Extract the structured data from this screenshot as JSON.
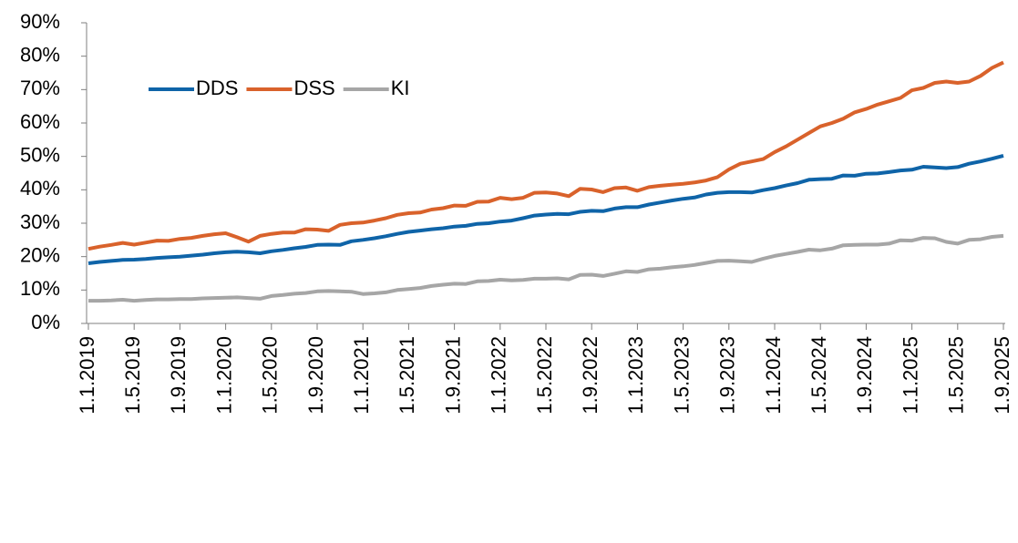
{
  "chart_data": {
    "type": "line",
    "categories": [
      "1.1.2019",
      null,
      null,
      null,
      "1.5.2019",
      null,
      null,
      null,
      "1.9.2019",
      null,
      null,
      null,
      "1.1.2020",
      null,
      null,
      null,
      "1.5.2020",
      null,
      null,
      null,
      "1.9.2020",
      null,
      null,
      null,
      "1.1.2021",
      null,
      null,
      null,
      "1.5.2021",
      null,
      null,
      null,
      "1.9.2021",
      null,
      null,
      null,
      "1.1.2022",
      null,
      null,
      null,
      "1.5.2022",
      null,
      null,
      null,
      "1.9.2022",
      null,
      null,
      null,
      "1.1.2023",
      null,
      null,
      null,
      "1.5.2023",
      null,
      null,
      null,
      "1.9.2023",
      null,
      null,
      null,
      "1.1.2024",
      null,
      null,
      null,
      "1.5.2024",
      null,
      null,
      null,
      "1.9.2024",
      null,
      null,
      null,
      "1.1.2025",
      null,
      null,
      null,
      "1.5.2025",
      null,
      null,
      null,
      "1.9.2025"
    ],
    "series": [
      {
        "name": "DDS",
        "color": "#0f64a8",
        "values": [
          18.0,
          18.4,
          18.7,
          19.0,
          19.1,
          19.3,
          19.6,
          19.8,
          20.0,
          20.3,
          20.6,
          21.0,
          21.3,
          21.5,
          21.3,
          21.0,
          21.6,
          22.0,
          22.5,
          22.9,
          23.5,
          23.6,
          23.5,
          24.6,
          25.0,
          25.5,
          26.1,
          26.8,
          27.4,
          27.8,
          28.2,
          28.5,
          29.0,
          29.2,
          29.8,
          30.0,
          30.5,
          30.8,
          31.5,
          32.3,
          32.6,
          32.8,
          32.7,
          33.4,
          33.7,
          33.6,
          34.4,
          34.8,
          34.8,
          35.6,
          36.2,
          36.8,
          37.3,
          37.7,
          38.6,
          39.1,
          39.3,
          39.3,
          39.2,
          39.9,
          40.5,
          41.3,
          42.0,
          43.0,
          43.2,
          43.3,
          44.3,
          44.2,
          44.8,
          44.9,
          45.3,
          45.8,
          46.0,
          46.9,
          46.7,
          46.5,
          46.8,
          47.8,
          48.5,
          49.3,
          50.2
        ]
      },
      {
        "name": "DSS",
        "color": "#d9622b",
        "values": [
          22.3,
          23.0,
          23.5,
          24.1,
          23.6,
          24.2,
          24.8,
          24.7,
          25.3,
          25.6,
          26.2,
          26.7,
          27.0,
          25.8,
          24.5,
          26.2,
          26.8,
          27.2,
          27.2,
          28.2,
          28.1,
          27.7,
          29.5,
          30.0,
          30.2,
          30.8,
          31.5,
          32.5,
          33.0,
          33.2,
          34.1,
          34.5,
          35.3,
          35.2,
          36.4,
          36.5,
          37.6,
          37.2,
          37.6,
          39.1,
          39.2,
          38.9,
          38.1,
          40.3,
          40.1,
          39.3,
          40.5,
          40.7,
          39.7,
          40.8,
          41.2,
          41.5,
          41.8,
          42.2,
          42.8,
          43.8,
          46.1,
          47.8,
          48.5,
          49.2,
          51.3,
          53.0,
          55.0,
          57.0,
          59.0,
          60.0,
          61.3,
          63.2,
          64.2,
          65.5,
          66.5,
          67.5,
          69.8,
          70.5,
          72.0,
          72.4,
          72.0,
          72.4,
          74.1,
          76.5,
          78.1
        ]
      },
      {
        "name": "KI",
        "color": "#a6a6a6",
        "values": [
          6.8,
          6.8,
          6.9,
          7.1,
          6.8,
          7.0,
          7.2,
          7.2,
          7.3,
          7.3,
          7.5,
          7.6,
          7.7,
          7.8,
          7.6,
          7.4,
          8.2,
          8.5,
          8.9,
          9.1,
          9.6,
          9.7,
          9.6,
          9.5,
          8.8,
          9.0,
          9.3,
          10.0,
          10.3,
          10.6,
          11.2,
          11.6,
          11.9,
          11.8,
          12.6,
          12.7,
          13.1,
          12.9,
          13.0,
          13.4,
          13.4,
          13.5,
          13.2,
          14.5,
          14.6,
          14.2,
          14.9,
          15.6,
          15.4,
          16.2,
          16.4,
          16.8,
          17.1,
          17.5,
          18.1,
          18.7,
          18.8,
          18.6,
          18.4,
          19.4,
          20.2,
          20.8,
          21.4,
          22.1,
          21.9,
          22.4,
          23.4,
          23.5,
          23.6,
          23.6,
          23.9,
          24.9,
          24.8,
          25.6,
          25.5,
          24.4,
          23.9,
          25.0,
          25.2,
          25.9,
          26.2
        ]
      }
    ],
    "ylim": [
      0,
      90
    ],
    "yticks": [
      {
        "value": 0,
        "label": "0%"
      },
      {
        "value": 10,
        "label": "10%"
      },
      {
        "value": 20,
        "label": "20%"
      },
      {
        "value": 30,
        "label": "30%"
      },
      {
        "value": 40,
        "label": "40%"
      },
      {
        "value": 50,
        "label": "50%"
      },
      {
        "value": 60,
        "label": "60%"
      },
      {
        "value": 70,
        "label": "70%"
      },
      {
        "value": 80,
        "label": "80%"
      },
      {
        "value": 90,
        "label": "90%"
      }
    ],
    "grid": false,
    "legend": "upper left"
  }
}
